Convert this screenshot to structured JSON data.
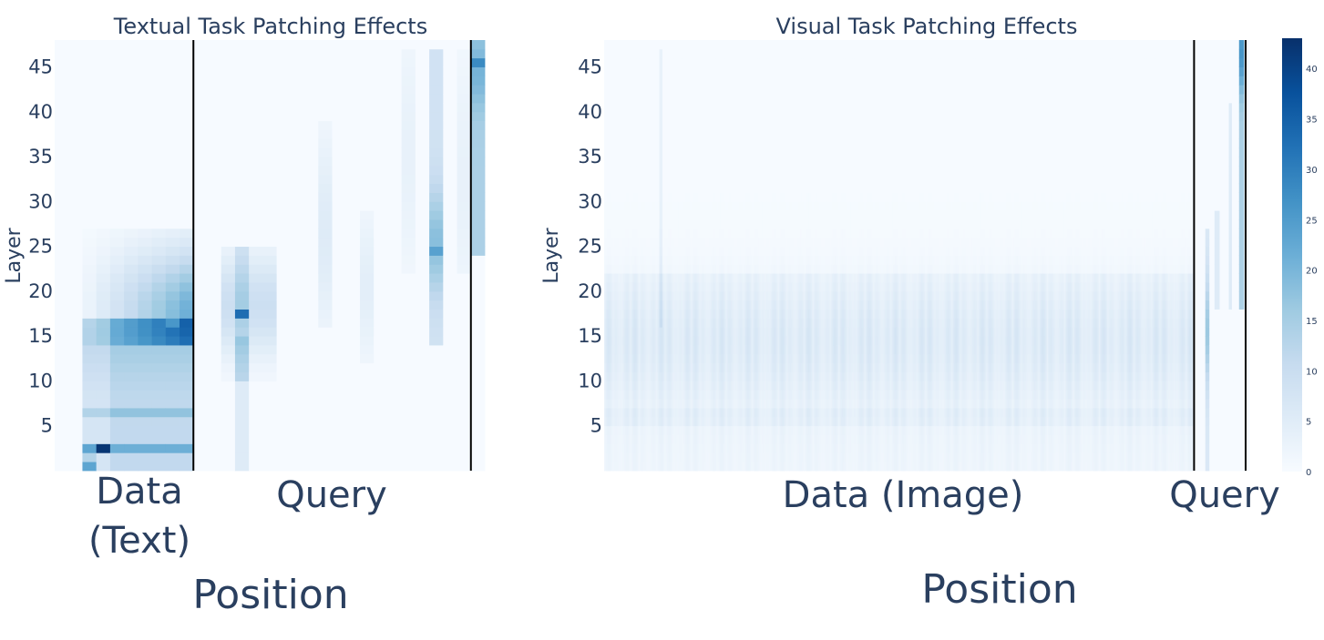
{
  "chart_data": [
    {
      "type": "heatmap",
      "title": "Textual Task Patching Effects",
      "ylabel": "Layer",
      "xlabel": "Position",
      "y_ticks": [
        "5",
        "10",
        "15",
        "20",
        "25",
        "30",
        "35",
        "40",
        "45"
      ],
      "ylim": [
        0,
        48
      ],
      "regions": [
        {
          "label_lines": [
            "Data",
            "(Text)"
          ],
          "columns": [
            0,
            10
          ]
        },
        {
          "label_lines": [
            "Query"
          ],
          "columns": [
            10,
            31
          ]
        }
      ],
      "n_columns": 31,
      "separators_after_column": [
        10,
        30
      ],
      "high_effect_cells": [
        {
          "column": 3,
          "layer": 2,
          "value": 42
        },
        {
          "column": 13,
          "layer": 17,
          "value": 33
        },
        {
          "column": 30,
          "layer": 45,
          "value": 28
        },
        {
          "column": 8,
          "layer": 16,
          "value": 26
        },
        {
          "column": 27,
          "layer": 24,
          "value": 24
        }
      ]
    },
    {
      "type": "heatmap",
      "title": "Visual Task Patching Effects",
      "ylabel": "Layer",
      "xlabel": "Position",
      "y_ticks": [
        "5",
        "10",
        "15",
        "20",
        "25",
        "30",
        "35",
        "40",
        "45"
      ],
      "ylim": [
        0,
        48
      ],
      "regions": [
        {
          "label_lines": [
            "Data (Image)"
          ],
          "columns": [
            0,
            577
          ]
        },
        {
          "label_lines": [
            "Query"
          ],
          "columns": [
            577,
            631
          ]
        }
      ],
      "n_columns": 631,
      "separators_after_column": [
        577,
        631
      ],
      "colorbar": {
        "min": 0,
        "max": 43,
        "ticks": [
          "0",
          "5",
          "10",
          "15",
          "20",
          "25",
          "30",
          "35",
          "40"
        ],
        "colorscale": [
          "#f7fbff",
          "#deebf7",
          "#c6dbef",
          "#9ecae1",
          "#6baed6",
          "#4292c6",
          "#2171b5",
          "#08519c",
          "#08306b"
        ]
      }
    }
  ]
}
